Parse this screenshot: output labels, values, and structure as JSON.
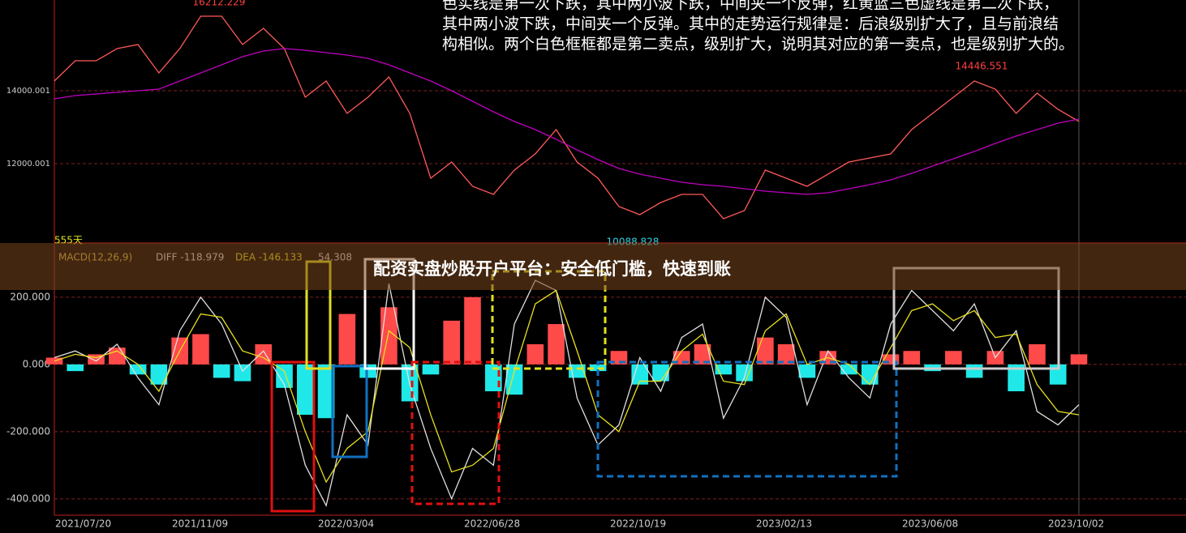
{
  "annotation_lines": [
    "色实线是第一次下跌，其中两小波下跌，中间夹一个反弹，红黄蓝三色虚线是第二次下跌，",
    "其中两小波下跌，中间夹一个反弹。其中的走势运行规律是：后浪级别扩大了，且与前浪结",
    "构相似。两个白色框框都是第二卖点，级别扩大，说明其对应的第一卖点，也是级别扩大的。"
  ],
  "banner": "配资实盘炒股开户平台：安全低门槛，快速到账",
  "chart_data": [
    {
      "type": "line",
      "ylim": [
        9933,
        16489
      ],
      "yticks": [
        14000.001,
        12000.001
      ],
      "grid": true,
      "period_label": "555天",
      "annotations": [
        {
          "text": "16212.229",
          "color": "#ff4040"
        },
        {
          "text": "14446.551",
          "color": "#ff4040"
        },
        {
          "text": "10088.828",
          "color": "#30d0e0"
        }
      ],
      "series": [
        {
          "color": "#ff5a5a",
          "values": [
            14267,
            14822,
            14822,
            15156,
            15267,
            14489,
            15156,
            16044,
            16044,
            15267,
            15711,
            15156,
            13822,
            14267,
            13378,
            13822,
            14378,
            13378,
            11600,
            12044,
            11378,
            11156,
            11822,
            12267,
            12933,
            12044,
            11600,
            10822,
            10600,
            10933,
            11156,
            11156,
            10489,
            10711,
            11822,
            11600,
            11378,
            11711,
            12044,
            12156,
            12267,
            12933,
            13378,
            13822,
            14267,
            14044,
            13378,
            13933,
            13489,
            13156
          ]
        },
        {
          "color": "#c000c0",
          "values": [
            13778,
            13867,
            13911,
            13956,
            14000,
            14044,
            14267,
            14489,
            14711,
            14933,
            15089,
            15156,
            15111,
            15044,
            14978,
            14889,
            14711,
            14489,
            14267,
            14000,
            13711,
            13422,
            13156,
            12933,
            12667,
            12378,
            12111,
            11867,
            11711,
            11600,
            11489,
            11422,
            11378,
            11311,
            11244,
            11200,
            11156,
            11200,
            11311,
            11422,
            11556,
            11733,
            11933,
            12133,
            12333,
            12556,
            12756,
            12933,
            13111,
            13222
          ]
        }
      ]
    },
    {
      "type": "macd",
      "ylim": [
        -439,
        337
      ],
      "yticks": [
        {
          "value": 200,
          "label": "200.000"
        },
        {
          "value": 0,
          "label": "0.000"
        },
        {
          "value": -200,
          "label": "-200.000"
        },
        {
          "value": -400,
          "label": "-400.000"
        }
      ],
      "grid": true,
      "indicator_label": "MACD(12,26,9)",
      "histogram_label": "54.308",
      "x_labels": [
        "2021/07/20",
        "2021/11/09",
        "2022/03/04",
        "2022/06/28",
        "2022/10/19",
        "2023/02/13",
        "2023/06/08",
        "2023/10/02"
      ],
      "histogram": {
        "up_color": "#ff4a4a",
        "down_color": "#20e8e8",
        "values": [
          20,
          -20,
          30,
          50,
          -30,
          -60,
          80,
          90,
          -40,
          -50,
          60,
          -70,
          -150,
          -160,
          150,
          -40,
          170,
          -110,
          -30,
          130,
          200,
          -80,
          -90,
          60,
          120,
          -40,
          -20,
          40,
          -60,
          -50,
          40,
          60,
          -30,
          -50,
          80,
          60,
          -40,
          40,
          -30,
          -60,
          30,
          40,
          -20,
          40,
          -40,
          40,
          -80,
          60,
          -60,
          30
        ]
      },
      "series": [
        {
          "name": "DIFF -118.979",
          "color": "#e0e0e0",
          "values": [
            20,
            40,
            10,
            60,
            -40,
            -120,
            100,
            200,
            120,
            -20,
            40,
            -60,
            -300,
            -420,
            -150,
            -240,
            240,
            -60,
            -250,
            -400,
            -250,
            -300,
            120,
            250,
            220,
            -100,
            -240,
            -180,
            20,
            -80,
            80,
            120,
            -160,
            -40,
            200,
            140,
            -120,
            40,
            -40,
            -100,
            120,
            220,
            160,
            100,
            180,
            20,
            100,
            -140,
            -180,
            -120
          ]
        },
        {
          "name": "DEA -146.133",
          "color": "#e8e020",
          "values": [
            10,
            30,
            20,
            40,
            0,
            -80,
            40,
            150,
            140,
            40,
            20,
            -20,
            -200,
            -350,
            -250,
            -200,
            100,
            50,
            -150,
            -320,
            -300,
            -250,
            -20,
            180,
            220,
            40,
            -150,
            -200,
            -50,
            -50,
            40,
            90,
            -50,
            -60,
            100,
            150,
            0,
            20,
            0,
            -60,
            50,
            160,
            180,
            130,
            160,
            80,
            90,
            -60,
            -140,
            -150
          ]
        }
      ]
    }
  ]
}
